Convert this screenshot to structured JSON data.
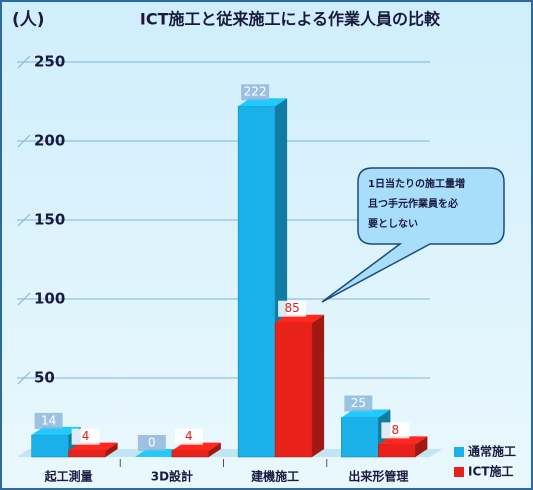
{
  "chart_data": {
    "type": "bar3d",
    "title": "ICT施工と従来施工による作業人員の比較",
    "y_label": "(人)",
    "categories": [
      "起工測量",
      "3D設計",
      "建機施工",
      "出来形管理"
    ],
    "series": [
      {
        "name": "通常施工",
        "color": "#1ab0e8",
        "values": [
          14,
          0,
          222,
          25
        ]
      },
      {
        "name": "ICT施工",
        "color": "#e8221a",
        "values": [
          4,
          4,
          85,
          8
        ]
      }
    ],
    "ylim": [
      0,
      250
    ],
    "yticks": [
      50,
      100,
      150,
      200,
      250
    ],
    "grid": true,
    "annotation": [
      "1日当たりの施工量増",
      "且つ手元作業員を必",
      "要としない"
    ],
    "legend": "bottom-right"
  }
}
